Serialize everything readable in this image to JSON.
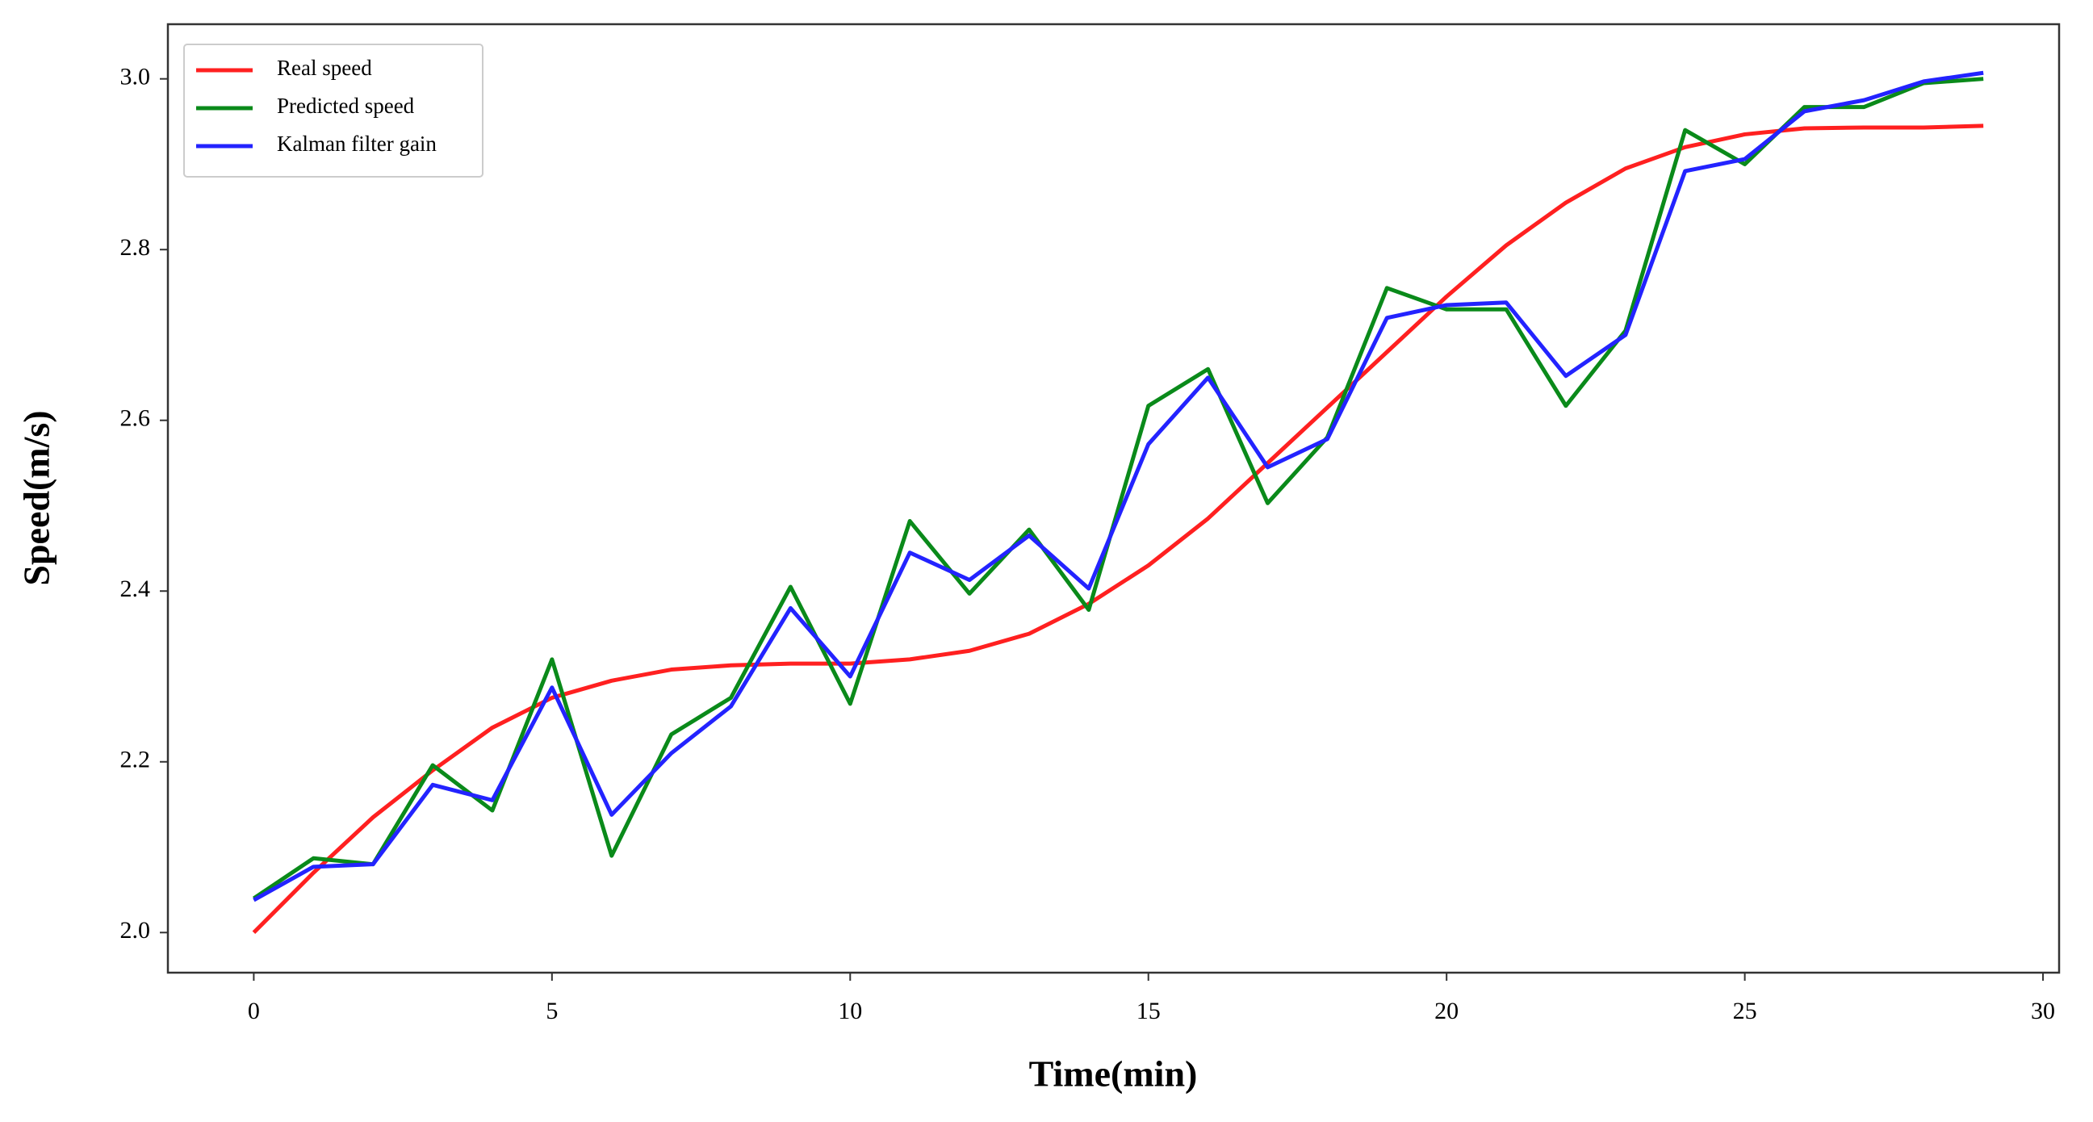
{
  "chart_data": {
    "type": "line",
    "x_label": "Time(min)",
    "y_label": "Speed(m/s)",
    "x": [
      0,
      1,
      2,
      3,
      4,
      5,
      6,
      7,
      8,
      9,
      10,
      11,
      12,
      13,
      14,
      15,
      16,
      17,
      18,
      19,
      20,
      21,
      22,
      23,
      24,
      25,
      26,
      27,
      28,
      29
    ],
    "series": [
      {
        "name": "Real speed",
        "color": "#ff2020",
        "values": [
          2.0,
          2.07,
          2.135,
          2.19,
          2.24,
          2.275,
          2.295,
          2.308,
          2.313,
          2.315,
          2.315,
          2.32,
          2.33,
          2.35,
          2.385,
          2.43,
          2.485,
          2.55,
          2.615,
          2.68,
          2.745,
          2.805,
          2.855,
          2.895,
          2.92,
          2.935,
          2.942,
          2.943,
          2.943,
          2.945
        ]
      },
      {
        "name": "Predicted speed",
        "color": "#0a8a1a",
        "values": [
          2.04,
          2.087,
          2.08,
          2.196,
          2.143,
          2.32,
          2.09,
          2.232,
          2.275,
          2.405,
          2.268,
          2.482,
          2.397,
          2.472,
          2.378,
          2.617,
          2.66,
          2.503,
          2.58,
          2.755,
          2.73,
          2.73,
          2.617,
          2.705,
          2.94,
          2.9,
          2.967,
          2.967,
          2.995,
          3.0
        ]
      },
      {
        "name": "Kalman filter gain",
        "color": "#2323ff",
        "values": [
          2.038,
          2.077,
          2.08,
          2.173,
          2.155,
          2.287,
          2.138,
          2.21,
          2.265,
          2.38,
          2.3,
          2.445,
          2.413,
          2.465,
          2.403,
          2.572,
          2.65,
          2.545,
          2.578,
          2.72,
          2.735,
          2.738,
          2.652,
          2.7,
          2.892,
          2.906,
          2.962,
          2.975,
          2.997,
          3.007
        ]
      }
    ],
    "xlim": [
      -1.44,
      30.27
    ],
    "ylim": [
      1.953,
      3.064
    ],
    "xticks": [
      0,
      5,
      10,
      15,
      20,
      25,
      30
    ],
    "yticks": [
      {
        "value": 2,
        "label": "2.0"
      },
      2.2,
      2.4,
      2.6,
      2.8,
      {
        "value": 3,
        "label": "3.0"
      }
    ],
    "grid": false,
    "legend": "upper left"
  }
}
